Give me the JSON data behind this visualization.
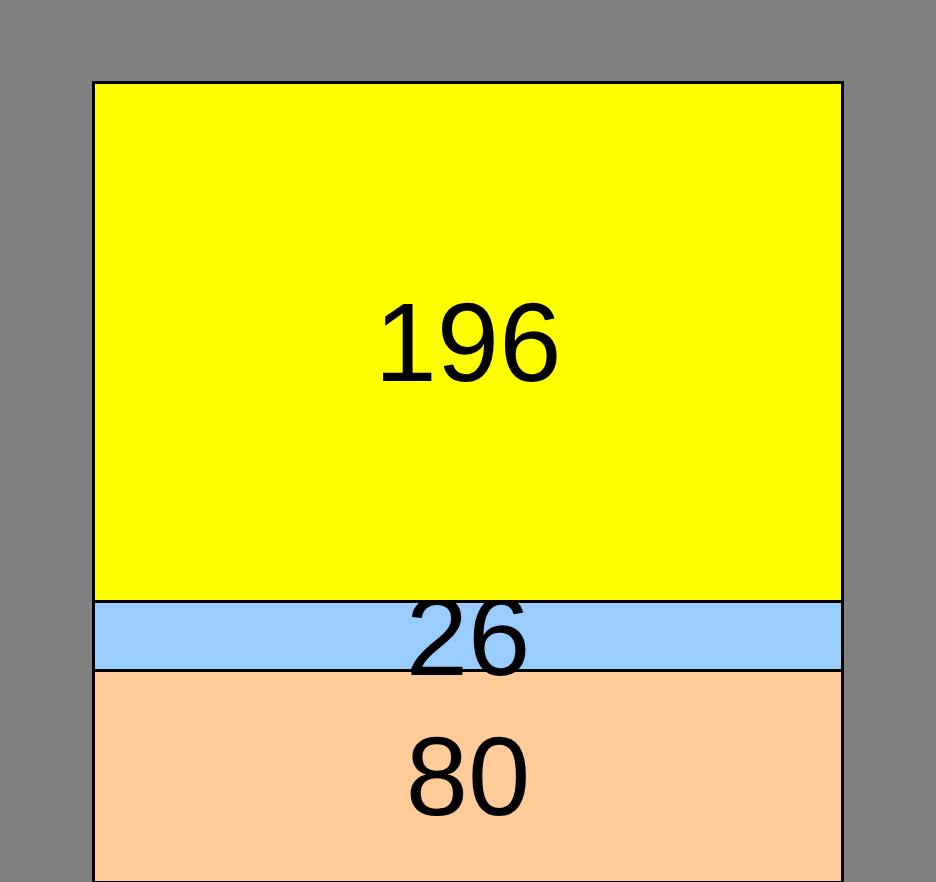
{
  "chart_data": {
    "type": "bar",
    "stacked": true,
    "categories": [
      null
    ],
    "series": [
      {
        "color": "#ffcc99",
        "values": [
          80
        ]
      },
      {
        "color": "#99ccff",
        "values": [
          26
        ]
      },
      {
        "color": "#ffff00",
        "values": [
          196
        ]
      }
    ],
    "data_labels": true,
    "legend": false
  }
}
